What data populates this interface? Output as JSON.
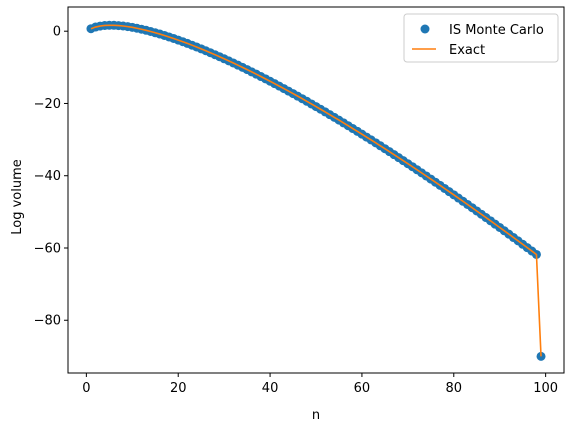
{
  "chart_data": {
    "type": "scatter",
    "title": "",
    "xlabel": "n",
    "ylabel": "Log volume",
    "xlim": [
      -4,
      104
    ],
    "ylim": [
      -94.6,
      6.7
    ],
    "xticks": [
      0,
      20,
      40,
      60,
      80,
      100
    ],
    "yticks": [
      0,
      -20,
      -40,
      -60,
      -80
    ],
    "grid": false,
    "legend_position": "top-right",
    "series": [
      {
        "name": "IS Monte Carlo",
        "style": "markers",
        "color": "#1f77b4",
        "x": [
          1,
          2,
          3,
          4,
          5,
          6,
          7,
          8,
          9,
          10,
          11,
          12,
          13,
          14,
          15,
          16,
          17,
          18,
          19,
          20,
          21,
          22,
          23,
          24,
          25,
          26,
          27,
          28,
          29,
          30,
          31,
          32,
          33,
          34,
          35,
          36,
          37,
          38,
          39,
          40,
          41,
          42,
          43,
          44,
          45,
          46,
          47,
          48,
          49,
          50,
          51,
          52,
          53,
          54,
          55,
          56,
          57,
          58,
          59,
          60,
          61,
          62,
          63,
          64,
          65,
          66,
          67,
          68,
          69,
          70,
          71,
          72,
          73,
          74,
          75,
          76,
          77,
          78,
          79,
          80,
          81,
          82,
          83,
          84,
          85,
          86,
          87,
          88,
          89,
          90,
          91,
          92,
          93,
          94,
          95,
          96,
          97,
          98,
          99
        ],
        "y": [
          0.69,
          1.15,
          1.42,
          1.59,
          1.64,
          1.64,
          1.56,
          1.44,
          1.27,
          1.07,
          0.82,
          0.55,
          0.25,
          -0.08,
          -0.43,
          -0.79,
          -1.18,
          -1.59,
          -2.01,
          -2.46,
          -2.91,
          -3.38,
          -3.87,
          -4.37,
          -4.88,
          -5.41,
          -5.95,
          -6.5,
          -7.06,
          -7.63,
          -8.21,
          -8.8,
          -9.4,
          -10.01,
          -10.63,
          -11.26,
          -11.89,
          -12.54,
          -13.19,
          -13.85,
          -14.52,
          -15.2,
          -15.88,
          -16.57,
          -17.27,
          -17.97,
          -18.69,
          -19.4,
          -20.13,
          -20.86,
          -21.6,
          -22.34,
          -23.09,
          -23.85,
          -24.61,
          -25.38,
          -26.15,
          -26.93,
          -27.71,
          -28.5,
          -29.3,
          -30.09,
          -30.9,
          -31.71,
          -32.52,
          -33.34,
          -34.17,
          -35.0,
          -35.83,
          -36.67,
          -37.51,
          -38.36,
          -39.21,
          -40.07,
          -40.93,
          -41.79,
          -42.66,
          -43.53,
          -44.41,
          -45.29,
          -46.18,
          -47.07,
          -47.96,
          -48.86,
          -49.76,
          -50.66,
          -51.57,
          -52.48,
          -53.4,
          -54.32,
          -55.24,
          -56.17,
          -57.1,
          -58.03,
          -58.97,
          -59.91,
          -60.85,
          -61.8,
          -90.0
        ]
      },
      {
        "name": "Exact",
        "style": "line",
        "color": "#ff7f0e"
      }
    ]
  }
}
